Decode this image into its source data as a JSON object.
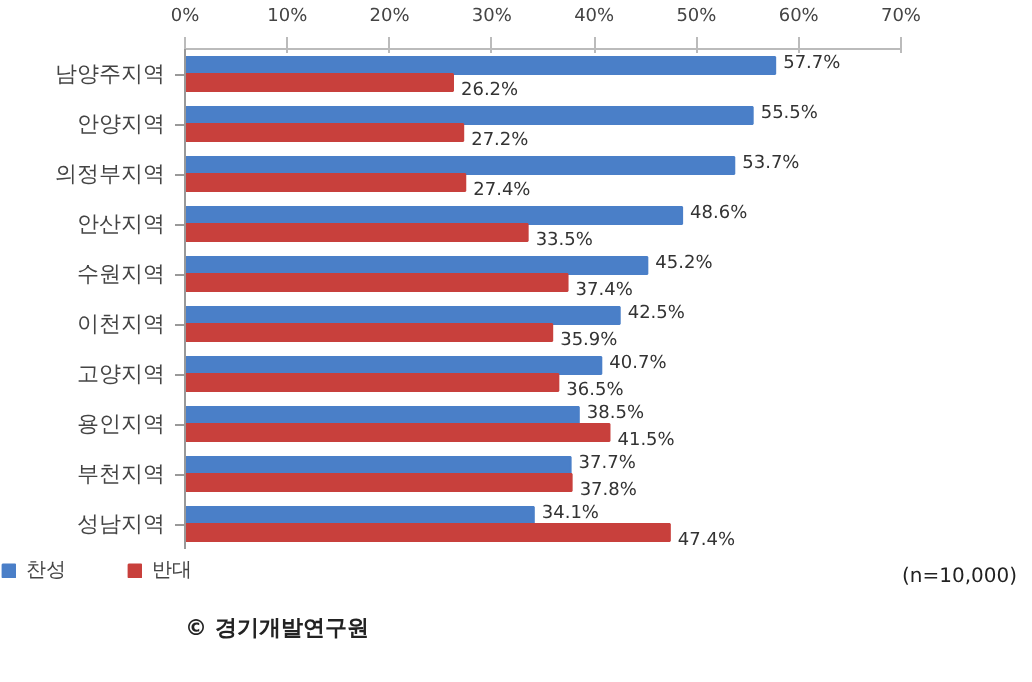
{
  "chart_data": {
    "type": "bar",
    "orientation": "horizontal",
    "categories": [
      "남양주지역",
      "안양지역",
      "의정부지역",
      "안산지역",
      "수원지역",
      "이천지역",
      "고양지역",
      "용인지역",
      "부천지역",
      "성남지역"
    ],
    "series": [
      {
        "name": "찬성",
        "color": "#4a7fc8",
        "values": [
          57.7,
          55.5,
          53.7,
          48.6,
          45.2,
          42.5,
          40.7,
          38.5,
          37.7,
          34.1
        ],
        "value_labels": [
          "57.7%",
          "55.5%",
          "53.7%",
          "48.6%",
          "45.2%",
          "42.5%",
          "40.7%",
          "38.5%",
          "37.7%",
          "34.1%"
        ]
      },
      {
        "name": "반대",
        "color": "#c8403c",
        "values": [
          26.2,
          27.2,
          27.4,
          33.5,
          37.4,
          35.9,
          36.5,
          41.5,
          37.8,
          47.4
        ],
        "value_labels": [
          "26.2%",
          "27.2%",
          "27.4%",
          "33.5%",
          "37.4%",
          "35.9%",
          "36.5%",
          "41.5%",
          "37.8%",
          "47.4%"
        ]
      }
    ],
    "xlim": [
      0,
      70
    ],
    "xticks": [
      {
        "value": 0,
        "label": "0%"
      },
      {
        "value": 10,
        "label": "10%"
      },
      {
        "value": 20,
        "label": "20%"
      },
      {
        "value": 30,
        "label": "30%"
      },
      {
        "value": 40,
        "label": "40%"
      },
      {
        "value": 50,
        "label": "50%"
      },
      {
        "value": 60,
        "label": "60%"
      },
      {
        "value": 70,
        "label": "70%"
      }
    ],
    "grid": false,
    "legend": "bottom left",
    "annotations": [
      "(n=10,000)",
      "© 경기개발연구원"
    ]
  }
}
